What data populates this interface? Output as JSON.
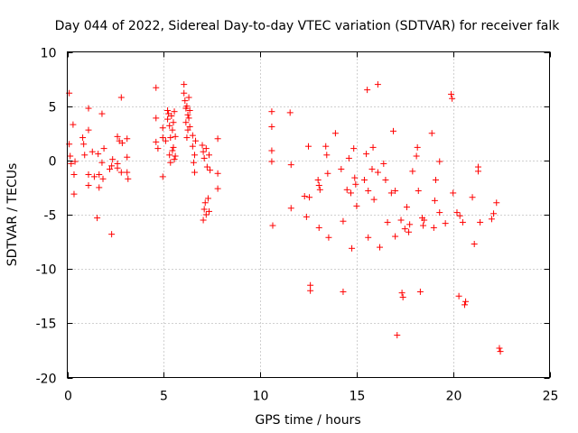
{
  "chart_data": {
    "type": "scatter",
    "title": "Day 044 of 2022, Sidereal Day-to-day VTEC variation (SDTVAR) for receiver falk",
    "xlabel": "GPS time / hours",
    "ylabel": "SDTVAR / TECUs",
    "xlim": [
      0,
      25
    ],
    "ylim": [
      -20,
      10
    ],
    "xticks": [
      0,
      5,
      10,
      15,
      20,
      25
    ],
    "yticks": [
      -20,
      -15,
      -10,
      -5,
      0,
      5,
      10
    ],
    "xtick_labels": [
      "0",
      "5",
      "10",
      "15",
      "20",
      "25"
    ],
    "ytick_labels": [
      "-20",
      "-15",
      "-10",
      "-5",
      "0",
      "5",
      "10"
    ],
    "grid": true,
    "marker": "+",
    "color": "#ff0000",
    "series": [
      {
        "name": "SDTVAR",
        "points": [
          [
            0.1,
            6.2
          ],
          [
            0.1,
            1.5
          ],
          [
            0.15,
            0.4
          ],
          [
            0.2,
            -0.3
          ],
          [
            0.3,
            3.3
          ],
          [
            0.35,
            -1.3
          ],
          [
            0.35,
            -3.1
          ],
          [
            0.4,
            -0.1
          ],
          [
            0.8,
            2.1
          ],
          [
            0.85,
            1.5
          ],
          [
            0.9,
            0.5
          ],
          [
            1.1,
            4.8
          ],
          [
            1.1,
            2.8
          ],
          [
            1.1,
            -1.3
          ],
          [
            1.1,
            -2.3
          ],
          [
            1.3,
            0.8
          ],
          [
            1.4,
            -1.5
          ],
          [
            1.55,
            -5.3
          ],
          [
            1.6,
            0.6
          ],
          [
            1.65,
            -1.3
          ],
          [
            1.65,
            -2.5
          ],
          [
            1.8,
            4.3
          ],
          [
            1.8,
            -0.2
          ],
          [
            1.85,
            -1.7
          ],
          [
            1.9,
            1.1
          ],
          [
            2.2,
            -0.8
          ],
          [
            2.3,
            -0.5
          ],
          [
            2.3,
            -6.8
          ],
          [
            2.35,
            0.1
          ],
          [
            2.6,
            2.2
          ],
          [
            2.6,
            -0.3
          ],
          [
            2.6,
            -0.7
          ],
          [
            2.7,
            1.8
          ],
          [
            2.8,
            5.8
          ],
          [
            2.8,
            -1.1
          ],
          [
            2.85,
            1.6
          ],
          [
            3.1,
            2.0
          ],
          [
            3.1,
            0.3
          ],
          [
            3.1,
            -1.1
          ],
          [
            3.15,
            -1.7
          ],
          [
            4.6,
            6.7
          ],
          [
            4.6,
            3.9
          ],
          [
            4.6,
            1.7
          ],
          [
            4.7,
            1.1
          ],
          [
            4.95,
            3.0
          ],
          [
            4.95,
            2.1
          ],
          [
            4.95,
            -1.5
          ],
          [
            5.1,
            1.8
          ],
          [
            5.2,
            4.6
          ],
          [
            5.2,
            3.8
          ],
          [
            5.25,
            4.3
          ],
          [
            5.3,
            3.2
          ],
          [
            5.3,
            0.5
          ],
          [
            5.35,
            2.1
          ],
          [
            5.35,
            -0.2
          ],
          [
            5.4,
            4.1
          ],
          [
            5.45,
            2.8
          ],
          [
            5.45,
            0.9
          ],
          [
            5.5,
            3.5
          ],
          [
            5.5,
            1.2
          ],
          [
            5.55,
            4.5
          ],
          [
            5.55,
            0.1
          ],
          [
            5.6,
            2.2
          ],
          [
            5.6,
            0.4
          ],
          [
            6.05,
            7.0
          ],
          [
            6.05,
            6.2
          ],
          [
            6.1,
            5.5
          ],
          [
            6.15,
            4.8
          ],
          [
            6.15,
            3.5
          ],
          [
            6.2,
            5.0
          ],
          [
            6.2,
            2.1
          ],
          [
            6.25,
            4.2
          ],
          [
            6.25,
            2.8
          ],
          [
            6.3,
            5.8
          ],
          [
            6.3,
            3.9
          ],
          [
            6.35,
            4.6
          ],
          [
            6.35,
            3.1
          ],
          [
            6.5,
            2.3
          ],
          [
            6.5,
            1.3
          ],
          [
            6.55,
            -0.2
          ],
          [
            6.6,
            0.5
          ],
          [
            6.6,
            -1.1
          ],
          [
            6.65,
            1.8
          ],
          [
            7.0,
            1.4
          ],
          [
            7.05,
            0.8
          ],
          [
            7.05,
            -5.5
          ],
          [
            7.1,
            -4.5
          ],
          [
            7.1,
            0.2
          ],
          [
            7.15,
            -3.9
          ],
          [
            7.2,
            -5.0
          ],
          [
            7.2,
            1.1
          ],
          [
            7.25,
            -0.6
          ],
          [
            7.3,
            -3.5
          ],
          [
            7.35,
            0.5
          ],
          [
            7.35,
            -4.7
          ],
          [
            7.4,
            -0.9
          ],
          [
            7.8,
            2.0
          ],
          [
            7.8,
            -1.2
          ],
          [
            7.8,
            -2.6
          ],
          [
            10.6,
            4.5
          ],
          [
            10.6,
            3.1
          ],
          [
            10.6,
            0.9
          ],
          [
            10.6,
            -0.1
          ],
          [
            10.65,
            -6.0
          ],
          [
            11.55,
            4.4
          ],
          [
            11.6,
            -0.4
          ],
          [
            11.6,
            -4.4
          ],
          [
            12.3,
            -3.3
          ],
          [
            12.4,
            -5.2
          ],
          [
            12.5,
            1.3
          ],
          [
            12.55,
            -3.4
          ],
          [
            12.6,
            -11.5
          ],
          [
            12.6,
            -12.0
          ],
          [
            13.0,
            -1.8
          ],
          [
            13.05,
            -2.3
          ],
          [
            13.05,
            -6.2
          ],
          [
            13.1,
            -2.7
          ],
          [
            13.4,
            1.3
          ],
          [
            13.45,
            0.5
          ],
          [
            13.5,
            -1.2
          ],
          [
            13.55,
            -7.1
          ],
          [
            13.9,
            2.5
          ],
          [
            14.2,
            -0.8
          ],
          [
            14.3,
            -5.6
          ],
          [
            14.3,
            -12.1
          ],
          [
            14.5,
            -2.7
          ],
          [
            14.6,
            0.2
          ],
          [
            14.7,
            -3.0
          ],
          [
            14.75,
            -8.1
          ],
          [
            14.85,
            1.1
          ],
          [
            14.9,
            -1.6
          ],
          [
            14.95,
            -2.2
          ],
          [
            15.0,
            -4.2
          ],
          [
            15.4,
            -1.8
          ],
          [
            15.5,
            0.6
          ],
          [
            15.55,
            6.5
          ],
          [
            15.6,
            -2.8
          ],
          [
            15.6,
            -7.1
          ],
          [
            15.8,
            -0.8
          ],
          [
            15.85,
            1.2
          ],
          [
            15.9,
            -3.6
          ],
          [
            16.1,
            7.0
          ],
          [
            16.1,
            -1.1
          ],
          [
            16.2,
            -8.0
          ],
          [
            16.4,
            -0.3
          ],
          [
            16.5,
            -1.8
          ],
          [
            16.6,
            -5.7
          ],
          [
            16.8,
            -3.0
          ],
          [
            16.9,
            2.7
          ],
          [
            17.0,
            -2.8
          ],
          [
            17.0,
            -7.0
          ],
          [
            17.1,
            -16.1
          ],
          [
            17.3,
            -5.5
          ],
          [
            17.35,
            -12.2
          ],
          [
            17.4,
            -12.6
          ],
          [
            17.5,
            -6.3
          ],
          [
            17.6,
            -4.3
          ],
          [
            17.7,
            -6.6
          ],
          [
            17.75,
            -5.9
          ],
          [
            17.9,
            -1.0
          ],
          [
            18.1,
            0.4
          ],
          [
            18.15,
            1.2
          ],
          [
            18.2,
            -2.8
          ],
          [
            18.3,
            -12.1
          ],
          [
            18.4,
            -5.3
          ],
          [
            18.45,
            -6.0
          ],
          [
            18.5,
            -5.5
          ],
          [
            18.9,
            2.5
          ],
          [
            19.0,
            -6.2
          ],
          [
            19.05,
            -3.7
          ],
          [
            19.1,
            -1.8
          ],
          [
            19.3,
            -0.1
          ],
          [
            19.3,
            -4.8
          ],
          [
            19.6,
            -5.8
          ],
          [
            19.9,
            6.1
          ],
          [
            19.95,
            5.7
          ],
          [
            20.0,
            -3.0
          ],
          [
            20.2,
            -4.8
          ],
          [
            20.3,
            -12.5
          ],
          [
            20.35,
            -5.1
          ],
          [
            20.5,
            -5.7
          ],
          [
            20.6,
            -13.3
          ],
          [
            20.65,
            -13.0
          ],
          [
            21.0,
            -3.4
          ],
          [
            21.1,
            -7.7
          ],
          [
            21.3,
            -0.6
          ],
          [
            21.3,
            -1.0
          ],
          [
            21.4,
            -5.7
          ],
          [
            22.0,
            -5.4
          ],
          [
            22.1,
            -4.9
          ],
          [
            22.25,
            -3.9
          ],
          [
            22.4,
            -17.3
          ],
          [
            22.45,
            -17.6
          ]
        ]
      }
    ]
  }
}
